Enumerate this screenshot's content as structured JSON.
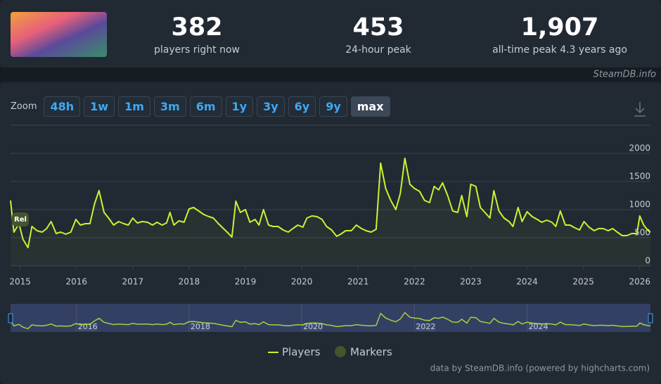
{
  "header": {
    "stats": [
      {
        "value": "382",
        "label": "players right now"
      },
      {
        "value": "453",
        "label": "24-hour peak"
      },
      {
        "value": "1,907",
        "label": "all-time peak 4.3 years ago"
      }
    ],
    "brand": "SteamDB.info"
  },
  "zoom": {
    "label": "Zoom",
    "buttons": [
      "48h",
      "1w",
      "1m",
      "3m",
      "6m",
      "1y",
      "3y",
      "6y",
      "9y",
      "max"
    ],
    "active": 9
  },
  "chart_data": {
    "type": "line",
    "xlim": [
      2014.83,
      2026.19
    ],
    "xticks": [
      2015,
      2016,
      2017,
      2018,
      2019,
      2020,
      2021,
      2022,
      2023,
      2024,
      2025,
      2026
    ],
    "ylim": [
      0,
      2500
    ],
    "yticks": [
      0,
      500,
      1000,
      1500,
      2000
    ],
    "grid": true,
    "x": [
      2014.83,
      2014.89,
      2014.98,
      2015.05,
      2015.14,
      2015.21,
      2015.3,
      2015.39,
      2015.47,
      2015.55,
      2015.64,
      2015.72,
      2015.81,
      2015.9,
      2015.99,
      2016.07,
      2016.16,
      2016.24,
      2016.32,
      2016.4,
      2016.49,
      2016.57,
      2016.66,
      2016.75,
      2016.84,
      2016.92,
      2017.0,
      2017.08,
      2017.17,
      2017.26,
      2017.35,
      2017.43,
      2017.52,
      2017.6,
      2017.66,
      2017.73,
      2017.82,
      2017.91,
      2018.0,
      2018.08,
      2018.17,
      2018.26,
      2018.35,
      2018.43,
      2018.52,
      2018.61,
      2018.7,
      2018.76,
      2018.83,
      2018.91,
      2019.0,
      2019.08,
      2019.17,
      2019.24,
      2019.32,
      2019.41,
      2019.49,
      2019.58,
      2019.67,
      2019.76,
      2019.84,
      2019.93,
      2020.02,
      2020.09,
      2020.18,
      2020.27,
      2020.36,
      2020.44,
      2020.53,
      2020.62,
      2020.69,
      2020.78,
      2020.88,
      2020.97,
      2021.06,
      2021.14,
      2021.23,
      2021.32,
      2021.4,
      2021.49,
      2021.58,
      2021.67,
      2021.75,
      2021.83,
      2021.92,
      2022.0,
      2022.09,
      2022.18,
      2022.27,
      2022.35,
      2022.43,
      2022.5,
      2022.59,
      2022.68,
      2022.77,
      2022.84,
      2022.93,
      2023.0,
      2023.09,
      2023.17,
      2023.25,
      2023.34,
      2023.41,
      2023.5,
      2023.59,
      2023.68,
      2023.75,
      2023.84,
      2023.91,
      2024.0,
      2024.09,
      2024.18,
      2024.26,
      2024.35,
      2024.44,
      2024.51,
      2024.59,
      2024.68,
      2024.76,
      2024.85,
      2024.93,
      2025.01,
      2025.1,
      2025.19,
      2025.27,
      2025.35,
      2025.44,
      2025.52,
      2025.6,
      2025.69,
      2025.77,
      2025.86,
      2025.95,
      2026.0,
      2026.07,
      2026.15,
      2026.19
    ],
    "series": [
      {
        "name": "Players",
        "color": "#c6f432",
        "values": [
          1162,
          600,
          750,
          475,
          325,
          700,
          625,
          600,
          662,
          787,
          575,
          600,
          562,
          600,
          825,
          725,
          750,
          750,
          1100,
          1337,
          950,
          850,
          725,
          787,
          750,
          725,
          850,
          762,
          787,
          775,
          725,
          775,
          725,
          762,
          950,
          725,
          800,
          775,
          1012,
          1037,
          975,
          912,
          875,
          850,
          750,
          662,
          575,
          512,
          1150,
          950,
          1000,
          775,
          825,
          725,
          1000,
          725,
          700,
          700,
          637,
          600,
          662,
          725,
          687,
          850,
          887,
          875,
          825,
          700,
          637,
          525,
          562,
          625,
          625,
          725,
          662,
          625,
          600,
          650,
          1825,
          1375,
          1162,
          1000,
          1287,
          1912,
          1450,
          1375,
          1325,
          1162,
          1125,
          1412,
          1350,
          1475,
          1250,
          975,
          950,
          1250,
          875,
          1450,
          1412,
          1037,
          950,
          850,
          1337,
          975,
          850,
          787,
          700,
          1037,
          787,
          962,
          875,
          825,
          775,
          812,
          775,
          700,
          975,
          725,
          725,
          675,
          637,
          787,
          687,
          625,
          662,
          662,
          625,
          662,
          600,
          537,
          537,
          575,
          575,
          887,
          725,
          625,
          600
        ]
      }
    ],
    "markers": {
      "name": "Markers",
      "color": "#44552e",
      "items": [
        {
          "x": 2014.98,
          "label": "Rel"
        }
      ]
    },
    "navigator": {
      "xticks": [
        2016,
        2018,
        2020,
        2022,
        2024
      ]
    }
  },
  "footer": {
    "credit": "data by SteamDB.info (powered by highcharts.com)"
  }
}
